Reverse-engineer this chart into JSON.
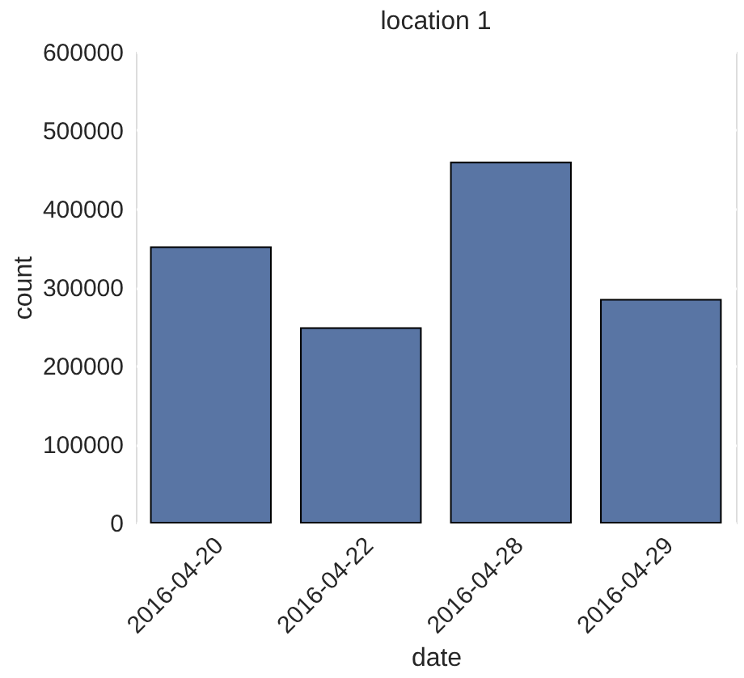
{
  "chart_data": {
    "type": "bar",
    "title": "location 1",
    "xlabel": "date",
    "ylabel": "count",
    "categories": [
      "2016-04-20",
      "2016-04-22",
      "2016-04-28",
      "2016-04-29"
    ],
    "values": [
      351000,
      248000,
      459000,
      284000
    ],
    "color": "#5975a4",
    "ylim": [
      0,
      600000
    ],
    "yticks": [
      0,
      100000,
      200000,
      300000,
      400000,
      500000,
      600000
    ],
    "grid": "y"
  }
}
